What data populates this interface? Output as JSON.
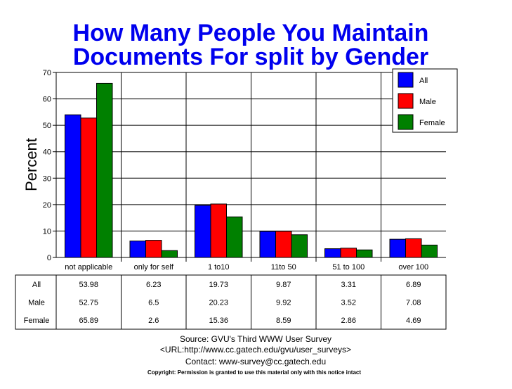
{
  "chart_data": {
    "type": "bar",
    "title_lines": [
      "How Many People You Maintain",
      "Documents For split by Gender"
    ],
    "ylabel": "Percent",
    "xlabel": "",
    "ylim": [
      0,
      70
    ],
    "yticks": [
      0,
      10,
      20,
      30,
      40,
      50,
      60,
      70
    ],
    "categories": [
      "not applicable",
      "only for self",
      "1 to10",
      "11to 50",
      "51 to 100",
      "over 100"
    ],
    "series": [
      {
        "name": "All",
        "color": "#0000ff",
        "values": [
          53.98,
          6.23,
          19.73,
          9.87,
          3.31,
          6.89
        ],
        "labels": [
          "53.98",
          "6.23",
          "19.73",
          "9.87",
          "3.31",
          "6.89"
        ]
      },
      {
        "name": "Male",
        "color": "#ff0000",
        "values": [
          52.75,
          6.5,
          20.23,
          9.92,
          3.52,
          7.08
        ],
        "labels": [
          "52.75",
          "6.5",
          "20.23",
          "9.92",
          "3.52",
          "7.08"
        ]
      },
      {
        "name": "Female",
        "color": "#008000",
        "values": [
          65.89,
          2.6,
          15.36,
          8.59,
          2.86,
          4.69
        ],
        "labels": [
          "65.89",
          "2.6",
          "15.36",
          "8.59",
          "2.86",
          "4.69"
        ]
      }
    ],
    "grid": true,
    "legend": "top-right",
    "table_under_chart": true
  },
  "footer": {
    "source": "Source: GVU's Third WWW User Survey",
    "url": "<URL:http://www.cc.gatech.edu/gvu/user_surveys>",
    "contact": "Contact: www-survey@cc.gatech.edu",
    "copyright": "Copyright: Permission is granted to use this material only with this notice intact"
  }
}
